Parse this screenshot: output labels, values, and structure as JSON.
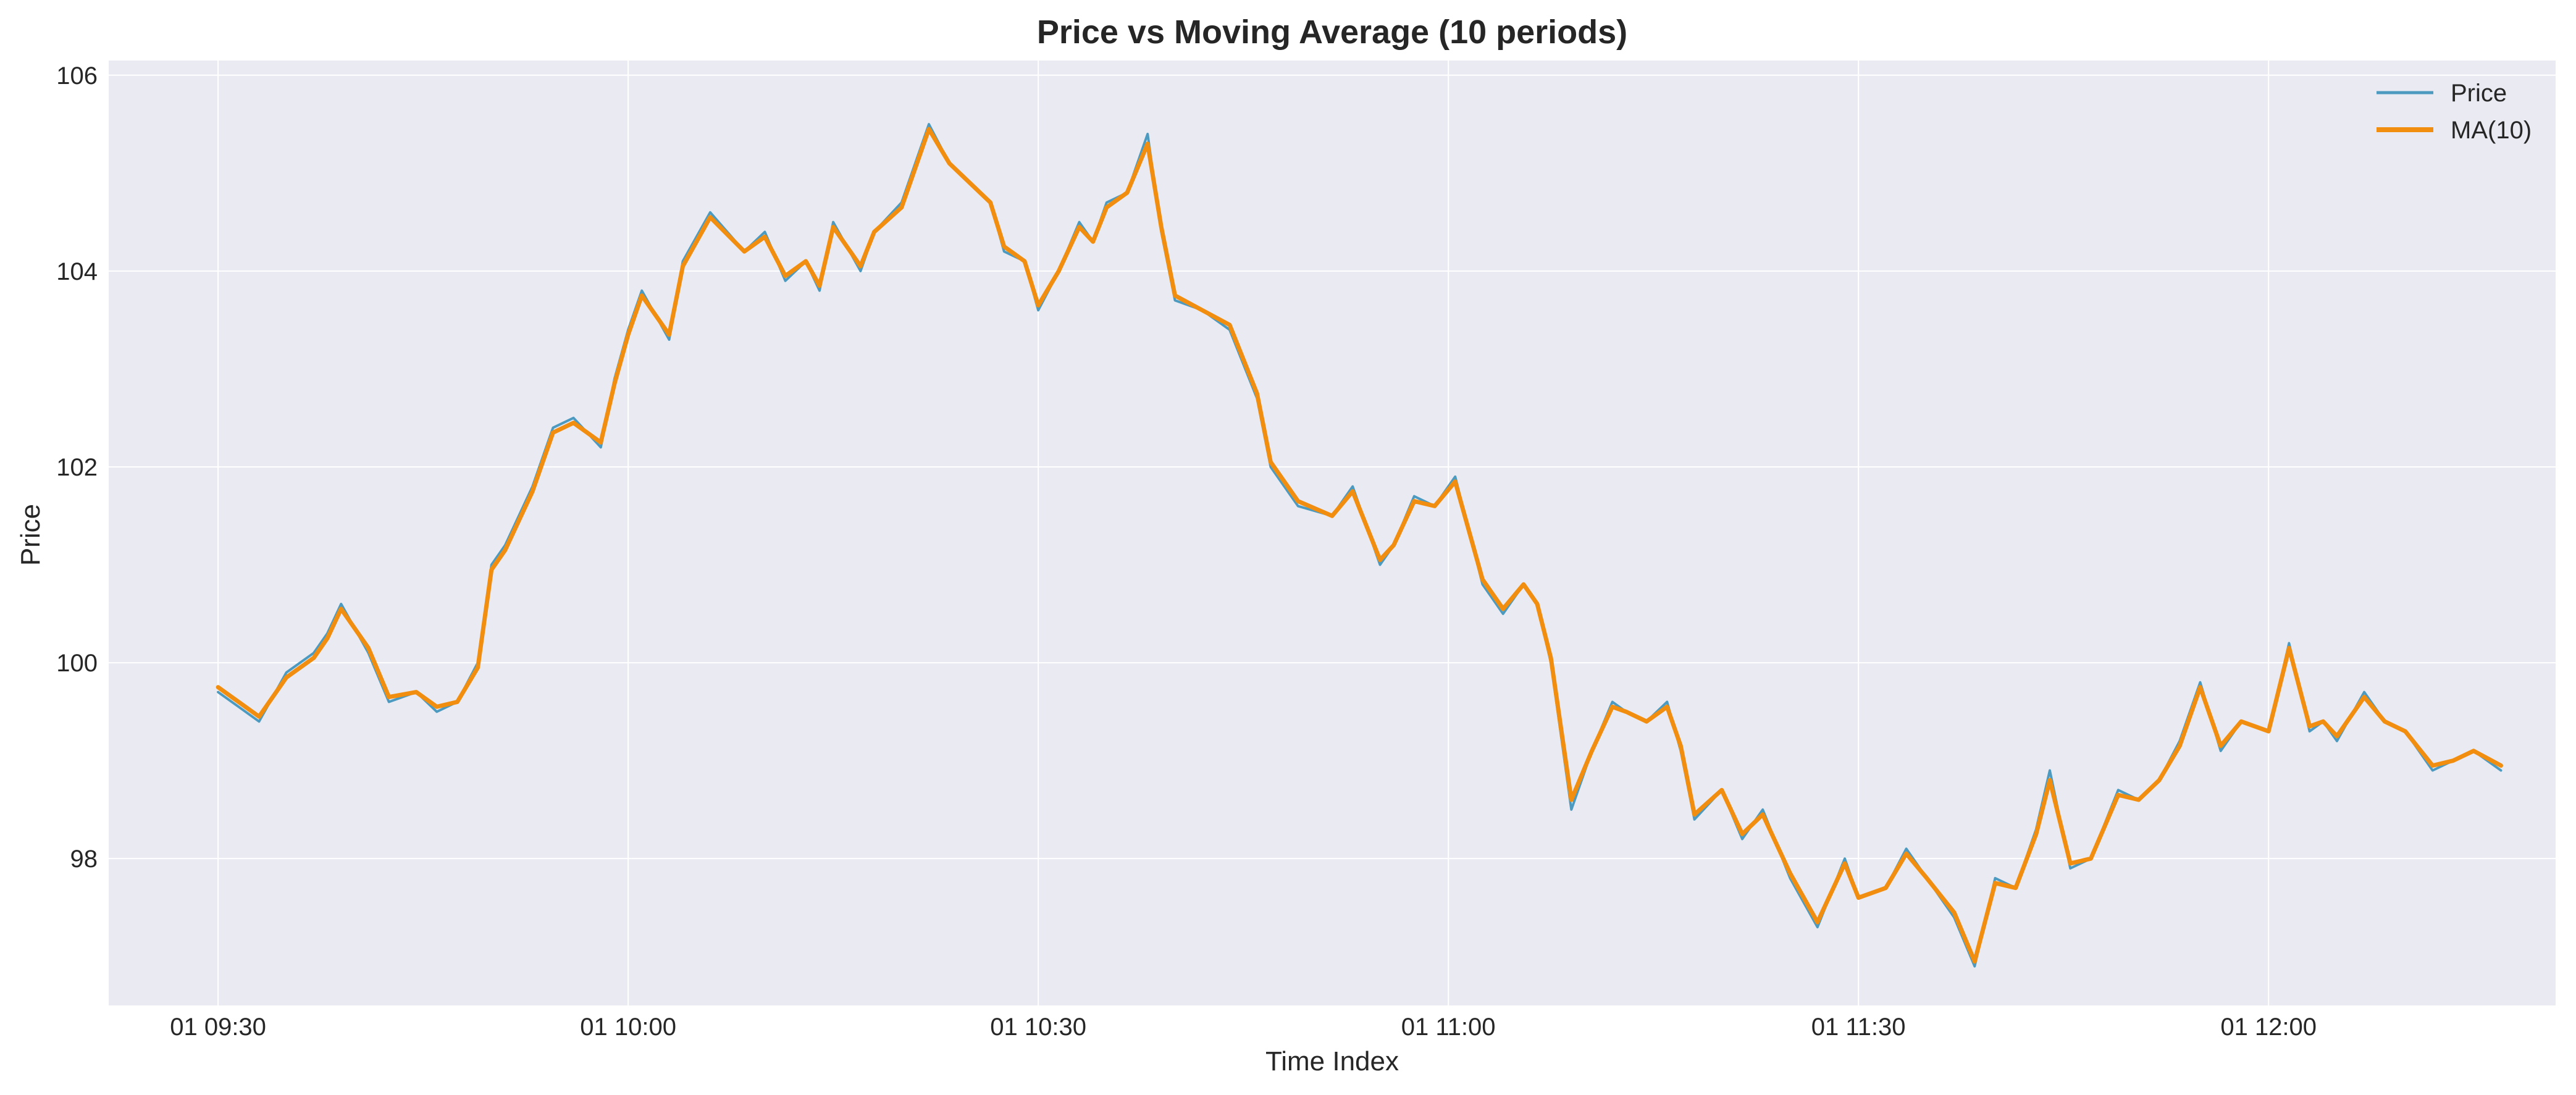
{
  "chart_data": {
    "type": "line",
    "title": "Price vs Moving Average (10 periods)",
    "xlabel": "Time Index",
    "ylabel": "Price",
    "x_tick_labels": [
      "01 09:30",
      "01 10:00",
      "01 10:30",
      "01 11:00",
      "01 11:30",
      "01 12:00"
    ],
    "x_tick_minutes": [
      0,
      30,
      60,
      90,
      120,
      150
    ],
    "y_ticks": [
      98,
      100,
      102,
      104,
      106
    ],
    "xlim_minutes": [
      -8,
      171
    ],
    "ylim": [
      96.5,
      106.15
    ],
    "x_range_minutes": [
      0,
      167
    ],
    "grid": true,
    "legend_position": "top-right",
    "background": "#EAEAF2",
    "x": [
      0,
      3,
      5,
      7,
      8,
      9,
      11,
      12.5,
      14.5,
      16,
      17.5,
      19,
      20,
      21,
      23,
      24.5,
      26,
      28,
      29,
      30,
      31,
      33,
      34,
      36,
      38.5,
      40,
      41.5,
      43,
      44,
      45,
      47,
      48,
      50,
      52,
      53.5,
      55,
      56.5,
      57.5,
      59,
      60,
      61.5,
      63,
      64,
      65,
      66.5,
      68,
      69,
      70,
      72,
      74,
      76,
      77,
      79,
      81.5,
      83,
      85,
      86,
      87.5,
      89,
      90.5,
      92.5,
      94,
      95.5,
      96.5,
      97.5,
      99,
      100.5,
      102,
      103,
      104.5,
      106,
      107,
      108,
      110,
      111.5,
      113,
      115,
      117,
      119,
      120,
      122,
      123.5,
      125,
      127,
      128.5,
      130,
      131.5,
      133,
      134,
      135.5,
      137,
      139,
      140.5,
      142,
      143.5,
      145,
      146.5,
      148,
      150,
      151.5,
      153,
      154,
      155,
      157,
      158.5,
      160,
      162,
      163.5,
      165,
      167
    ],
    "series": [
      {
        "name": "Price",
        "color": "#4C9ABF",
        "values": [
          99.7,
          99.4,
          99.9,
          100.1,
          100.3,
          100.6,
          100.1,
          99.6,
          99.7,
          99.5,
          99.6,
          100.0,
          101.0,
          101.2,
          101.8,
          102.4,
          102.5,
          102.2,
          102.9,
          103.4,
          103.8,
          103.3,
          104.1,
          104.6,
          104.2,
          104.4,
          103.9,
          104.1,
          103.8,
          104.5,
          104.0,
          104.4,
          104.7,
          105.5,
          105.1,
          104.9,
          104.7,
          104.2,
          104.1,
          103.6,
          104.0,
          104.5,
          104.3,
          104.7,
          104.8,
          105.4,
          104.4,
          103.7,
          103.6,
          103.4,
          102.7,
          102.0,
          101.6,
          101.5,
          101.8,
          101.0,
          101.2,
          101.7,
          101.6,
          101.9,
          100.8,
          100.5,
          100.8,
          100.6,
          100.0,
          98.5,
          99.1,
          99.6,
          99.5,
          99.4,
          99.6,
          99.1,
          98.4,
          98.7,
          98.2,
          98.5,
          97.8,
          97.3,
          98.0,
          97.6,
          97.7,
          98.1,
          97.8,
          97.4,
          96.9,
          97.8,
          97.7,
          98.3,
          98.9,
          97.9,
          98.0,
          98.7,
          98.6,
          98.8,
          99.2,
          99.8,
          99.1,
          99.4,
          99.3,
          100.2,
          99.3,
          99.4,
          99.2,
          99.7,
          99.4,
          99.3,
          98.9,
          99.0,
          99.1,
          98.9
        ]
      },
      {
        "name": "MA(10)",
        "color": "#F28E0F",
        "values": [
          99.75,
          99.45,
          99.85,
          100.05,
          100.25,
          100.55,
          100.15,
          99.65,
          99.7,
          99.55,
          99.6,
          99.95,
          100.95,
          101.15,
          101.75,
          102.35,
          102.45,
          102.25,
          102.85,
          103.35,
          103.75,
          103.35,
          104.05,
          104.55,
          104.2,
          104.35,
          103.95,
          104.1,
          103.85,
          104.45,
          104.05,
          104.4,
          104.65,
          105.45,
          105.1,
          104.9,
          104.7,
          104.25,
          104.1,
          103.65,
          104.0,
          104.45,
          104.3,
          104.65,
          104.8,
          105.3,
          104.45,
          103.75,
          103.6,
          103.45,
          102.75,
          102.05,
          101.65,
          101.5,
          101.75,
          101.05,
          101.2,
          101.65,
          101.6,
          101.85,
          100.85,
          100.55,
          100.8,
          100.6,
          100.05,
          98.6,
          99.1,
          99.55,
          99.5,
          99.4,
          99.55,
          99.15,
          98.45,
          98.7,
          98.25,
          98.45,
          97.85,
          97.35,
          97.95,
          97.6,
          97.7,
          98.05,
          97.8,
          97.45,
          96.95,
          97.75,
          97.7,
          98.25,
          98.8,
          97.95,
          98.0,
          98.65,
          98.6,
          98.8,
          99.15,
          99.75,
          99.15,
          99.4,
          99.3,
          100.15,
          99.35,
          99.4,
          99.25,
          99.65,
          99.4,
          99.3,
          98.95,
          99.0,
          99.1,
          98.95
        ]
      }
    ]
  }
}
